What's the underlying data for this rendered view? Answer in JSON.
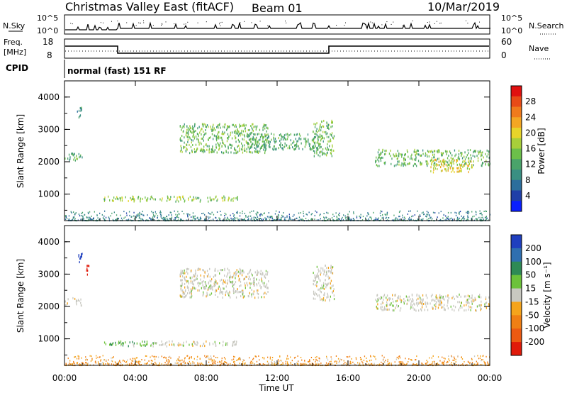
{
  "header": {
    "station": "Christmas Valley East (fitACF)",
    "beam": "Beam 01",
    "date": "10/Mar/2019"
  },
  "panels": {
    "nsky": {
      "label": "N.Sky",
      "ticks": [
        "10^5",
        "10^0"
      ]
    },
    "nsearch": {
      "label": "N.Search",
      "ticks": [
        "10^5",
        "10^0"
      ]
    },
    "freq": {
      "label_top": "Freq.",
      "label_unit": "[MHz]",
      "ticks": [
        "18",
        "8"
      ]
    },
    "nave": {
      "label": "Nave",
      "ticks": [
        "60",
        "0"
      ]
    },
    "cpid": {
      "label": "CPID",
      "mode": "normal (fast) 151 RF"
    }
  },
  "power_panel": {
    "ylabel": "Slant Range [km]",
    "yticks": [
      "4000",
      "3000",
      "2000",
      "1000"
    ],
    "colorbar_label": "Power [dB]",
    "colorbar_ticks": [
      "28",
      "24",
      "20",
      "16",
      "12",
      "8",
      "4"
    ],
    "colors": [
      "#0a1fff",
      "#1f3fa8",
      "#2c6e9c",
      "#3a8f82",
      "#4aa36a",
      "#6cbf4a",
      "#a8cf3a",
      "#e7d42a",
      "#f4a623",
      "#f07a1c",
      "#e84a17",
      "#e01010"
    ]
  },
  "velocity_panel": {
    "ylabel": "Slant Range [km]",
    "yticks": [
      "4000",
      "3000",
      "2000",
      "1000"
    ],
    "colorbar_label": "Velocity [m s⁻¹]",
    "colorbar_ticks": [
      "200",
      "100",
      "50",
      "15",
      "-15",
      "-50",
      "-100",
      "-200"
    ],
    "colors": [
      "#1f3fbf",
      "#2f6fb0",
      "#2e8a55",
      "#6cc23a",
      "#c8c8c0",
      "#f5a41c",
      "#f07f14",
      "#ec5a12",
      "#e01a0a"
    ]
  },
  "xaxis": {
    "label": "Time UT",
    "ticks": [
      "00:00",
      "04:00",
      "08:00",
      "12:00",
      "16:00",
      "20:00",
      "00:00"
    ]
  },
  "chart_data": [
    {
      "type": "heatmap",
      "title": "Power",
      "xlabel": "Time UT",
      "ylabel": "Slant Range [km]",
      "xlim": [
        0,
        24
      ],
      "ylim": [
        180,
        4500
      ],
      "colorbar": {
        "label": "Power [dB]",
        "range": [
          0,
          32
        ]
      },
      "regions": [
        {
          "t0": 0.0,
          "t1": 1.0,
          "r0": 2050,
          "r1": 2300,
          "level": 12
        },
        {
          "t0": 0.7,
          "t1": 1.0,
          "r0": 3400,
          "r1": 3700,
          "level": 10
        },
        {
          "t0": 2.2,
          "t1": 9.8,
          "r0": 800,
          "r1": 960,
          "level": 16
        },
        {
          "t0": 6.5,
          "t1": 11.5,
          "r0": 2300,
          "r1": 3200,
          "level": 14
        },
        {
          "t0": 10.0,
          "t1": 14.5,
          "r0": 2400,
          "r1": 2900,
          "level": 12
        },
        {
          "t0": 14.0,
          "t1": 15.2,
          "r0": 2200,
          "r1": 3300,
          "level": 14
        },
        {
          "t0": 17.5,
          "t1": 24.0,
          "r0": 1900,
          "r1": 2400,
          "level": 14
        },
        {
          "t0": 20.5,
          "t1": 23.0,
          "r0": 1700,
          "r1": 2100,
          "level": 20
        },
        {
          "t0": 0.0,
          "t1": 24.0,
          "r0": 200,
          "r1": 500,
          "level": 8
        }
      ]
    },
    {
      "type": "heatmap",
      "title": "Velocity",
      "xlabel": "Time UT",
      "ylabel": "Slant Range [km]",
      "xlim": [
        0,
        24
      ],
      "ylim": [
        180,
        4500
      ],
      "colorbar": {
        "label": "Velocity [m s⁻¹]",
        "range": [
          -250,
          250
        ]
      },
      "regions": [
        {
          "t0": 0.0,
          "t1": 1.0,
          "r0": 2050,
          "r1": 2300,
          "level": 0
        },
        {
          "t0": 0.7,
          "t1": 1.0,
          "r0": 3400,
          "r1": 3700,
          "level": 200
        },
        {
          "t0": 1.2,
          "t1": 1.4,
          "r0": 2950,
          "r1": 3300,
          "level": -200
        },
        {
          "t0": 2.2,
          "t1": 5.0,
          "r0": 800,
          "r1": 960,
          "level": 30
        },
        {
          "t0": 5.0,
          "t1": 9.8,
          "r0": 800,
          "r1": 960,
          "level": 0
        },
        {
          "t0": 6.5,
          "t1": 11.5,
          "r0": 2300,
          "r1": 3200,
          "level": 0
        },
        {
          "t0": 14.0,
          "t1": 15.2,
          "r0": 2200,
          "r1": 3300,
          "level": 0
        },
        {
          "t0": 17.5,
          "t1": 24.0,
          "r0": 1900,
          "r1": 2400,
          "level": 0
        },
        {
          "t0": 0.0,
          "t1": 24.0,
          "r0": 200,
          "r1": 500,
          "level": -30
        }
      ]
    }
  ]
}
